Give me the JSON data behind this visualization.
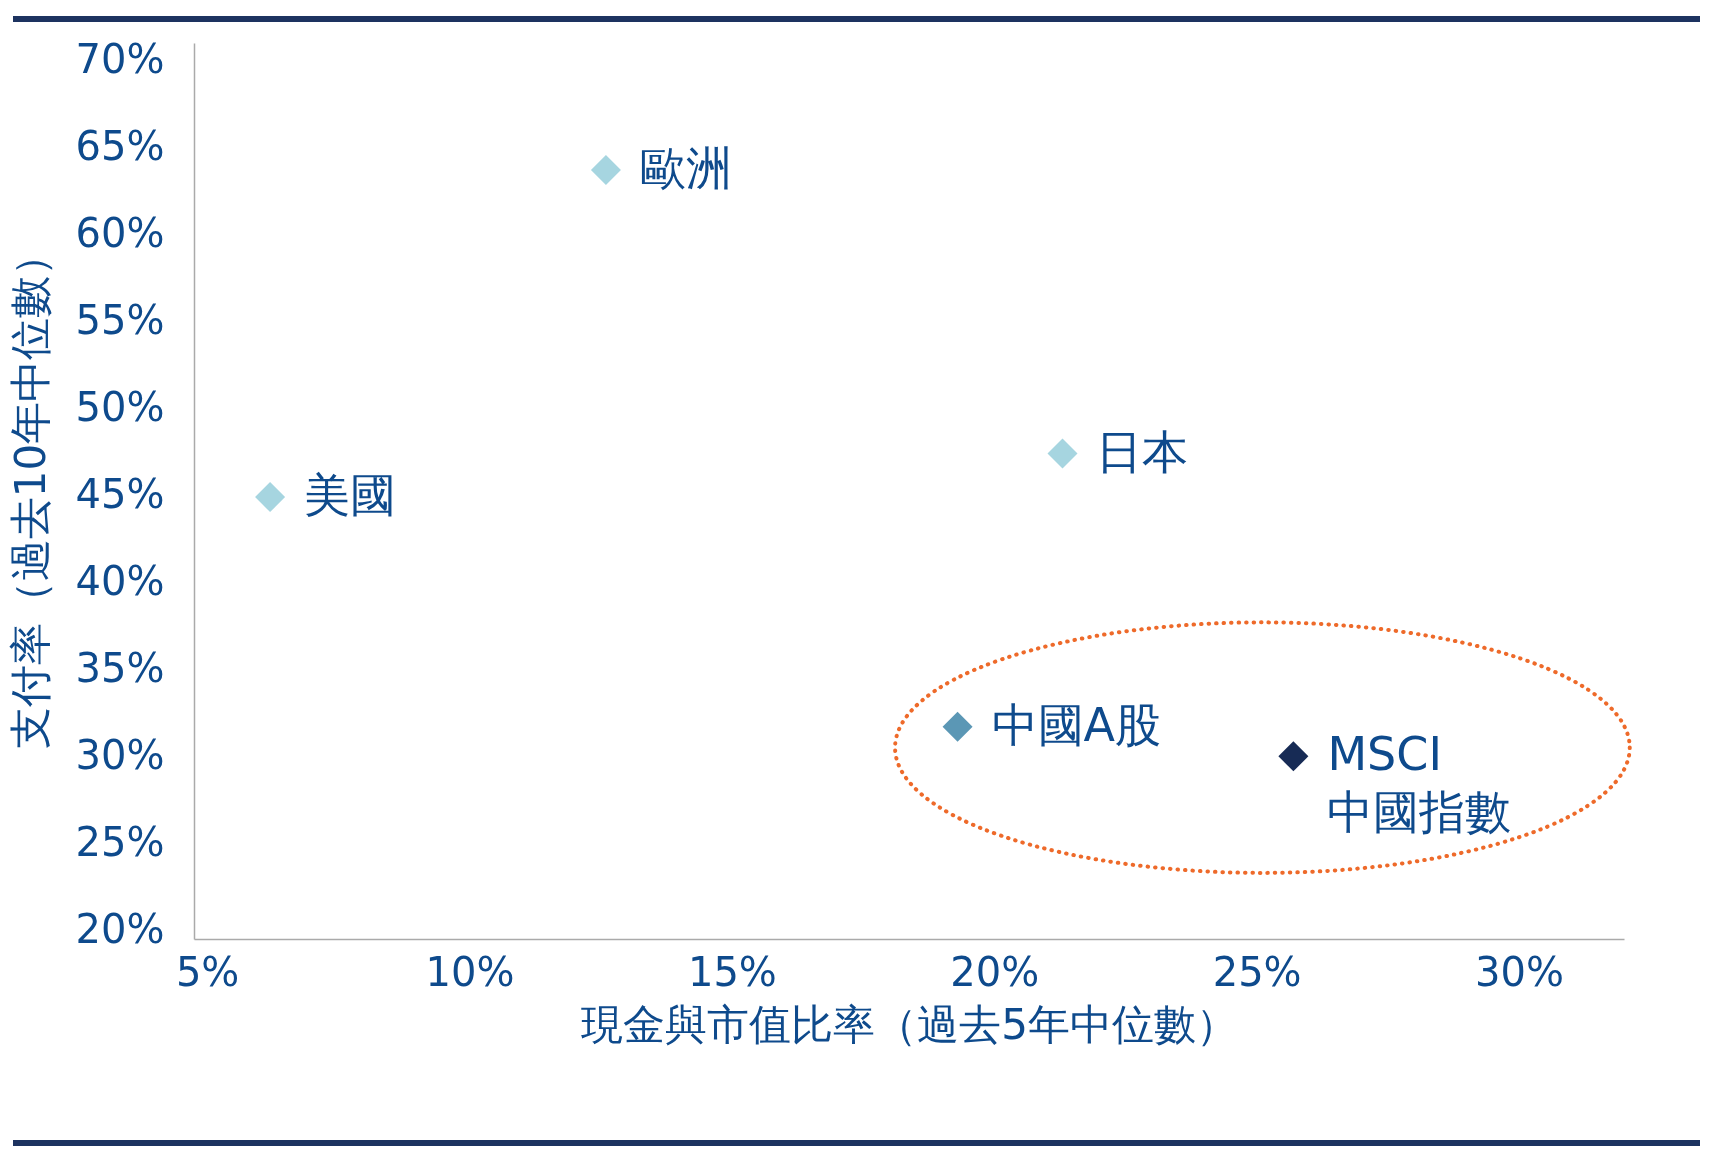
{
  "chart_data": {
    "type": "scatter",
    "xlabel": "現金與市值比率（過去5年中位數）",
    "ylabel": "支付率（過去10年中位數）",
    "xlim": [
      4.75,
      32
    ],
    "ylim": [
      19.5,
      71
    ],
    "xticks": [
      {
        "value": 5,
        "label": "5%"
      },
      {
        "value": 10,
        "label": "10%"
      },
      {
        "value": 15,
        "label": "15%"
      },
      {
        "value": 20,
        "label": "20%"
      },
      {
        "value": 25,
        "label": "25%"
      },
      {
        "value": 30,
        "label": "30%"
      }
    ],
    "yticks": [
      {
        "value": 20,
        "label": "20%"
      },
      {
        "value": 25,
        "label": "25%"
      },
      {
        "value": 30,
        "label": "30%"
      },
      {
        "value": 35,
        "label": "35%"
      },
      {
        "value": 40,
        "label": "40%"
      },
      {
        "value": 45,
        "label": "45%"
      },
      {
        "value": 50,
        "label": "50%"
      },
      {
        "value": 55,
        "label": "55%"
      },
      {
        "value": 60,
        "label": "60%"
      },
      {
        "value": 65,
        "label": "65%"
      },
      {
        "value": 70,
        "label": "70%"
      }
    ],
    "series": [
      {
        "name": "美國",
        "color": "#a6d5e0",
        "x": [
          6.2
        ],
        "values": [
          44.9
        ]
      },
      {
        "name": "歐洲",
        "color": "#a6d5e0",
        "x": [
          12.6
        ],
        "values": [
          63.7
        ]
      },
      {
        "name": "日本",
        "color": "#a6d5e0",
        "x": [
          21.3
        ],
        "values": [
          47.4
        ]
      },
      {
        "name": "中國A股",
        "color": "#5b97b5",
        "x": [
          19.3
        ],
        "values": [
          31.7
        ]
      },
      {
        "name": "MSCI\n中國指數",
        "color": "#172b55",
        "x": [
          25.7
        ],
        "values": [
          30.0
        ]
      }
    ],
    "marker": "diamond",
    "grid": false,
    "legend": false
  }
}
